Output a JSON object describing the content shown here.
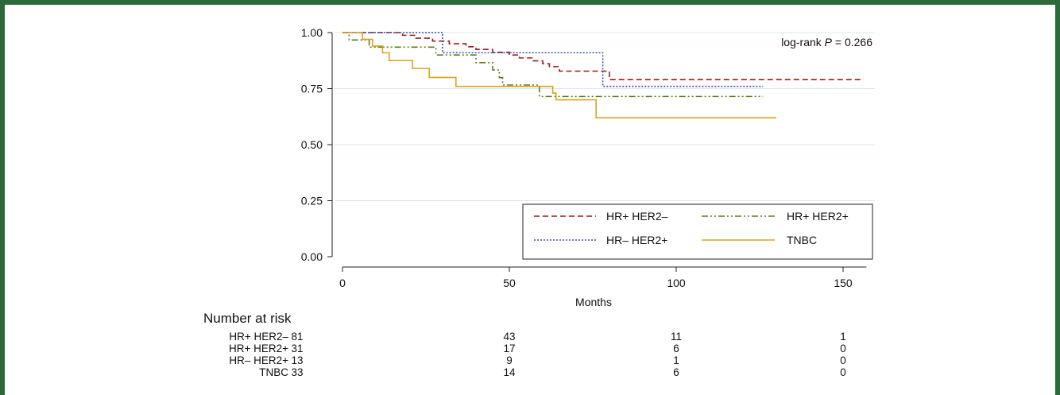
{
  "chart_data": {
    "type": "line",
    "subtype": "kaplan-meier step",
    "annotation_prefix": "log-rank ",
    "annotation_p": "P",
    "annotation_value": " = 0.266",
    "xlabel": "Months",
    "ylabel": "",
    "xlim": [
      0,
      160
    ],
    "ylim": [
      0,
      1.0
    ],
    "x_ticks": [
      0,
      50,
      100,
      150
    ],
    "x_tick_labels": [
      "0",
      "50",
      "100",
      "150"
    ],
    "y_ticks": [
      0,
      0.25,
      0.5,
      0.75,
      1.0
    ],
    "y_tick_labels": [
      "0.00",
      "0.25",
      "0.50",
      "0.75",
      "1.00"
    ],
    "grid": "horizontal",
    "legend_position": "bottom-right",
    "series": [
      {
        "name": "HR+ HER2–",
        "color": "#9b1c1c",
        "dash": "dashed",
        "points": [
          [
            0,
            1.0
          ],
          [
            18,
            0.988
          ],
          [
            22,
            0.975
          ],
          [
            27,
            0.962
          ],
          [
            32,
            0.95
          ],
          [
            37,
            0.937
          ],
          [
            40,
            0.925
          ],
          [
            45,
            0.912
          ],
          [
            50,
            0.9
          ],
          [
            53,
            0.887
          ],
          [
            57,
            0.874
          ],
          [
            60,
            0.861
          ],
          [
            62,
            0.848
          ],
          [
            65,
            0.828
          ],
          [
            80,
            0.79
          ],
          [
            156,
            0.79
          ]
        ]
      },
      {
        "name": "HR+ HER2+",
        "color": "#5a7d1e",
        "dash": "dash-dot-dot",
        "points": [
          [
            0,
            1.0
          ],
          [
            2,
            0.967
          ],
          [
            8,
            0.935
          ],
          [
            23,
            0.935
          ],
          [
            25,
            0.935
          ],
          [
            28,
            0.9
          ],
          [
            40,
            0.866
          ],
          [
            45,
            0.833
          ],
          [
            47,
            0.799
          ],
          [
            48,
            0.766
          ],
          [
            57,
            0.766
          ],
          [
            59,
            0.715
          ],
          [
            126,
            0.715
          ]
        ]
      },
      {
        "name": "HR– HER2+",
        "color": "#3a4fa8",
        "dash": "dotted",
        "points": [
          [
            0,
            1.0
          ],
          [
            29,
            1.0
          ],
          [
            30,
            0.91
          ],
          [
            77,
            0.91
          ],
          [
            78,
            0.76
          ],
          [
            126,
            0.76
          ]
        ]
      },
      {
        "name": "TNBC",
        "color": "#d9a320",
        "dash": "solid",
        "points": [
          [
            0,
            1.0
          ],
          [
            6,
            0.97
          ],
          [
            9,
            0.94
          ],
          [
            12,
            0.91
          ],
          [
            14,
            0.875
          ],
          [
            21,
            0.84
          ],
          [
            26,
            0.8
          ],
          [
            34,
            0.76
          ],
          [
            47,
            0.76
          ],
          [
            63,
            0.73
          ],
          [
            64,
            0.7
          ],
          [
            75,
            0.7
          ],
          [
            76,
            0.62
          ],
          [
            130,
            0.62
          ]
        ]
      }
    ],
    "risk_table": {
      "title": "Number at risk",
      "times": [
        0,
        50,
        100,
        150
      ],
      "rows": [
        {
          "label": "HR+ HER2–",
          "values": [
            "81",
            "43",
            "11",
            "1"
          ]
        },
        {
          "label": "HR+ HER2+",
          "values": [
            "31",
            "17",
            "6",
            "0"
          ]
        },
        {
          "label": "HR– HER2+",
          "values": [
            "13",
            "9",
            "1",
            "0"
          ]
        },
        {
          "label": "TNBC",
          "values": [
            "33",
            "14",
            "6",
            "0"
          ]
        }
      ]
    }
  }
}
